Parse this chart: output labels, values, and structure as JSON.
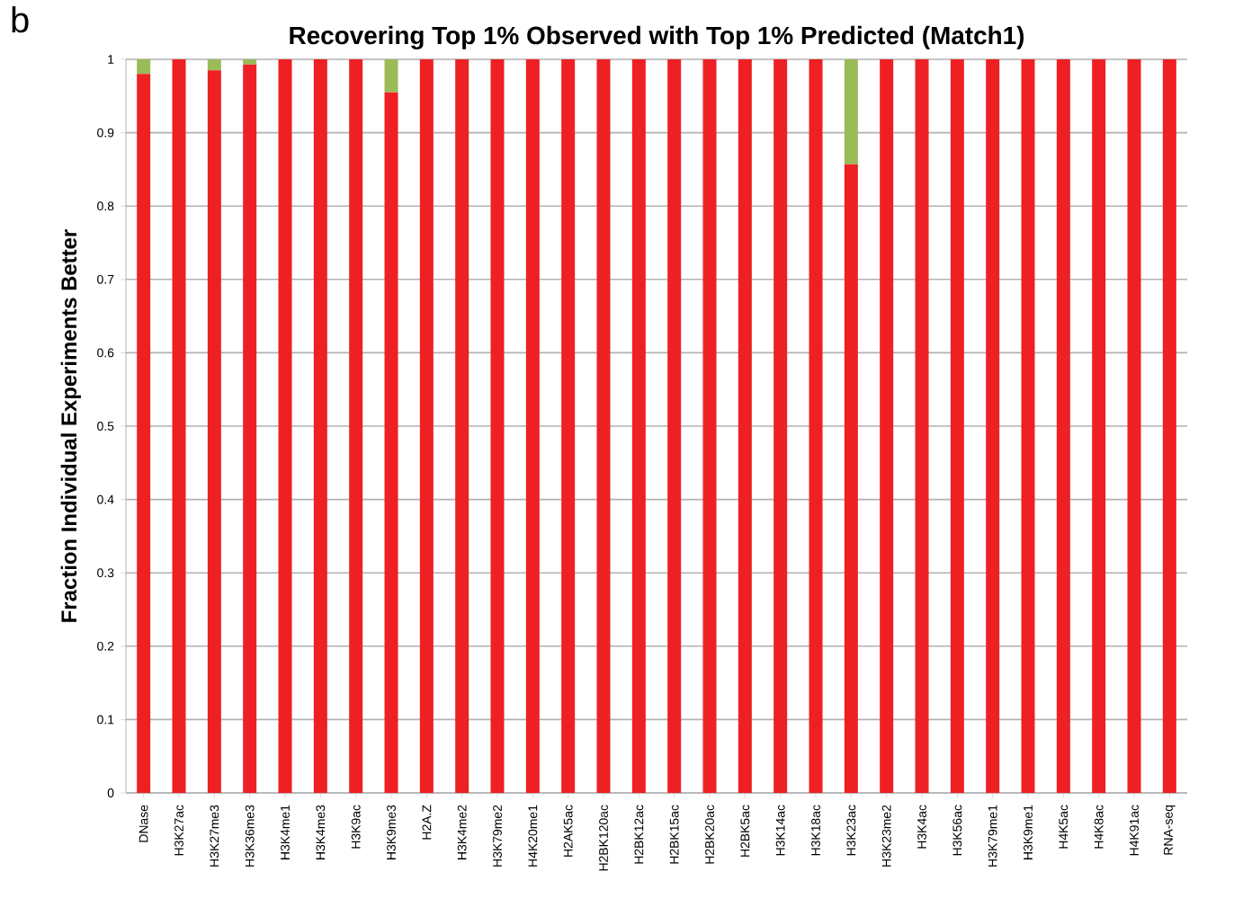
{
  "chart_data": {
    "type": "bar",
    "stacked": true,
    "title": "Recovering Top 1% Observed with Top 1% Predicted (Match1)",
    "ylabel": "Fraction Individual Experiments Better",
    "annotations": [
      "b"
    ],
    "categories": [
      "DNase",
      "H3K27ac",
      "H3K27me3",
      "H3K36me3",
      "H3K4me1",
      "H3K4me3",
      "H3K9ac",
      "H3K9me3",
      "H2A.Z",
      "H3K4me2",
      "H3K79me2",
      "H4K20me1",
      "H2AK5ac",
      "H2BK120ac",
      "H2BK12ac",
      "H2BK15ac",
      "H2BK20ac",
      "H2BK5ac",
      "H3K14ac",
      "H3K18ac",
      "H3K23ac",
      "H3K23me2",
      "H3K4ac",
      "H3K56ac",
      "H3K79me1",
      "H3K9me1",
      "H4K5ac",
      "H4K8ac",
      "H4K91ac",
      "RNA-seq"
    ],
    "series": [
      {
        "color": "#ee2024",
        "values": [
          0.98,
          1,
          0.985,
          0.993,
          1,
          1,
          1,
          0.955,
          1,
          1,
          1,
          1,
          1,
          1,
          1,
          1,
          1,
          1,
          1,
          1,
          0.857,
          1,
          1,
          1,
          1,
          1,
          1,
          1,
          1,
          1
        ]
      },
      {
        "color": "#9bbb59",
        "values": [
          0.02,
          0,
          0.015,
          0.007,
          0,
          0,
          0,
          0.045,
          0,
          0,
          0,
          0,
          0,
          0,
          0,
          0,
          0,
          0,
          0,
          0,
          0.143,
          0,
          0,
          0,
          0,
          0,
          0,
          0,
          0,
          0
        ]
      }
    ],
    "ylim": [
      0,
      1
    ],
    "yticks": [
      0,
      0.1,
      0.2,
      0.3,
      0.4,
      0.5,
      0.6,
      0.7,
      0.8,
      0.9,
      1
    ],
    "grid": "y"
  }
}
